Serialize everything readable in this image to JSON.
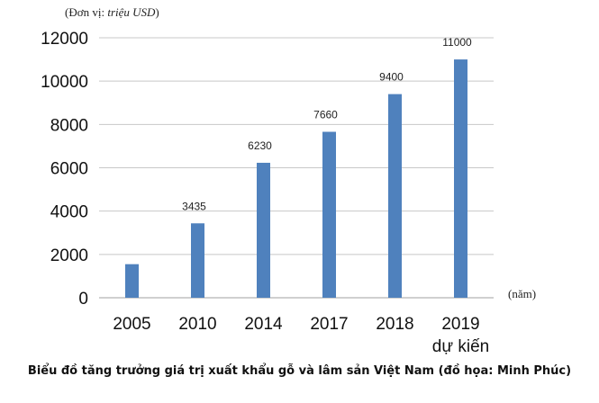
{
  "unit": {
    "prefix": "(Đơn vị: ",
    "italic": "triệu USD",
    "suffix": ")"
  },
  "caption": "Biểu đồ tăng trưởng giá trị xuất khẩu gỗ và lâm sản Việt Nam (đồ họa: Minh Phúc)",
  "chart_data": {
    "type": "bar",
    "categories": [
      "2005",
      "2010",
      "2014",
      "2017",
      "2018",
      "2019\ndự kiến"
    ],
    "values": [
      1550,
      3435,
      6230,
      7660,
      9400,
      11000
    ],
    "data_labels": [
      "",
      "3435",
      "6230",
      "7660",
      "9400",
      "11000"
    ],
    "ylim": [
      0,
      12000
    ],
    "yticks": [
      "0",
      "2000",
      "4000",
      "6000",
      "8000",
      "10000",
      "12000"
    ],
    "xlabel": "(năm)",
    "grid": true,
    "bar_color": "#4f81bd",
    "grid_color": "#c8c8c8"
  }
}
